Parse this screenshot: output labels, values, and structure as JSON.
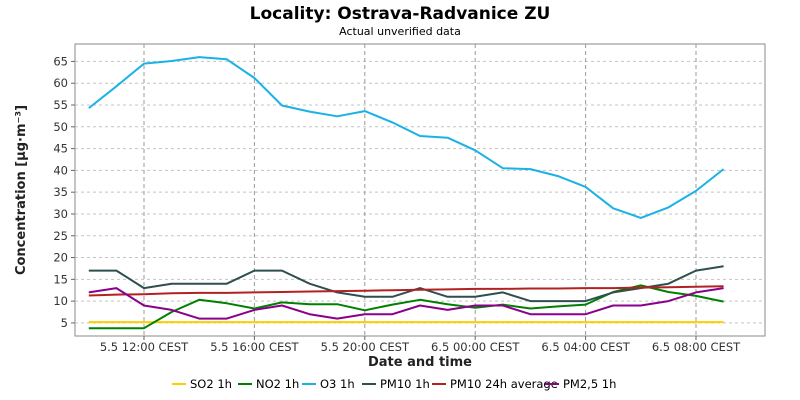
{
  "chart_data": {
    "type": "line",
    "title": "Locality: Ostrava-Radvanice ZU",
    "subtitle": "Actual unverified data",
    "xlabel": "Date and time",
    "ylabel": "Concentration [µg·m⁻³]",
    "ylim": [
      2,
      69
    ],
    "yticks": [
      5,
      10,
      15,
      20,
      25,
      30,
      35,
      40,
      45,
      50,
      55,
      60,
      65
    ],
    "x_hours": [
      10,
      11,
      12,
      13,
      14,
      15,
      16,
      17,
      18,
      19,
      20,
      21,
      22,
      23,
      24,
      25,
      26,
      27,
      28,
      29,
      30,
      31,
      32,
      33
    ],
    "xlim": [
      9.5,
      34.5
    ],
    "xticks": [
      {
        "hour": 12,
        "label": "5.5 12:00 CEST"
      },
      {
        "hour": 16,
        "label": "5.5 16:00 CEST"
      },
      {
        "hour": 20,
        "label": "5.5 20:00 CEST"
      },
      {
        "hour": 24,
        "label": "6.5 00:00 CEST"
      },
      {
        "hour": 28,
        "label": "6.5 04:00 CEST"
      },
      {
        "hour": 32,
        "label": "6.5 08:00 CEST"
      }
    ],
    "grid": true,
    "legend_position": "bottom",
    "series": [
      {
        "name": "SO2 1h",
        "color": "#ffcc00",
        "values": [
          5.2,
          5.2,
          5.2,
          5.2,
          5.2,
          5.2,
          5.2,
          5.2,
          5.2,
          5.2,
          5.2,
          5.2,
          5.2,
          5.2,
          5.2,
          5.2,
          5.2,
          5.2,
          5.2,
          5.2,
          5.2,
          5.2,
          5.2,
          5.2
        ]
      },
      {
        "name": "NO2 1h",
        "color": "#008000",
        "values": [
          3.8,
          3.8,
          3.8,
          7.5,
          10.3,
          9.5,
          8.3,
          9.7,
          9.3,
          9.3,
          7.9,
          9.2,
          10.3,
          9.3,
          8.5,
          9.2,
          8.3,
          8.8,
          9.2,
          12.1,
          13.6,
          12.1,
          11.2,
          9.9
        ]
      },
      {
        "name": "O3 1h",
        "color": "#1ab2e6",
        "values": [
          54.3,
          59.3,
          64.5,
          65.1,
          66.0,
          65.5,
          61.2,
          54.9,
          53.5,
          52.4,
          53.6,
          51.0,
          47.9,
          47.5,
          44.6,
          40.5,
          40.3,
          38.7,
          36.2,
          31.3,
          29.1,
          31.5,
          35.3,
          40.3
        ]
      },
      {
        "name": "PM10 1h",
        "color": "#2f4f4f",
        "values": [
          17.0,
          17.0,
          13.0,
          14.0,
          14.0,
          14.0,
          17.0,
          17.0,
          14.0,
          12.0,
          11.0,
          11.0,
          13.0,
          11.0,
          11.0,
          12.0,
          10.0,
          10.0,
          10.0,
          12.0,
          13.0,
          14.0,
          17.0,
          18.0
        ]
      },
      {
        "name": "PM10 24h average",
        "color": "#b22222",
        "values": [
          11.3,
          11.5,
          11.6,
          11.8,
          11.9,
          11.9,
          12.0,
          12.1,
          12.2,
          12.3,
          12.4,
          12.5,
          12.6,
          12.7,
          12.8,
          12.8,
          12.9,
          12.9,
          13.0,
          13.0,
          13.1,
          13.2,
          13.3,
          13.4
        ]
      },
      {
        "name": "PM2,5 1h",
        "color": "#8b008b",
        "values": [
          12.0,
          13.0,
          9.0,
          8.0,
          6.0,
          6.0,
          8.0,
          9.0,
          7.0,
          6.0,
          7.0,
          7.0,
          9.0,
          8.0,
          9.0,
          9.0,
          7.0,
          7.0,
          7.0,
          9.0,
          9.0,
          10.0,
          12.0,
          13.0
        ]
      }
    ]
  }
}
